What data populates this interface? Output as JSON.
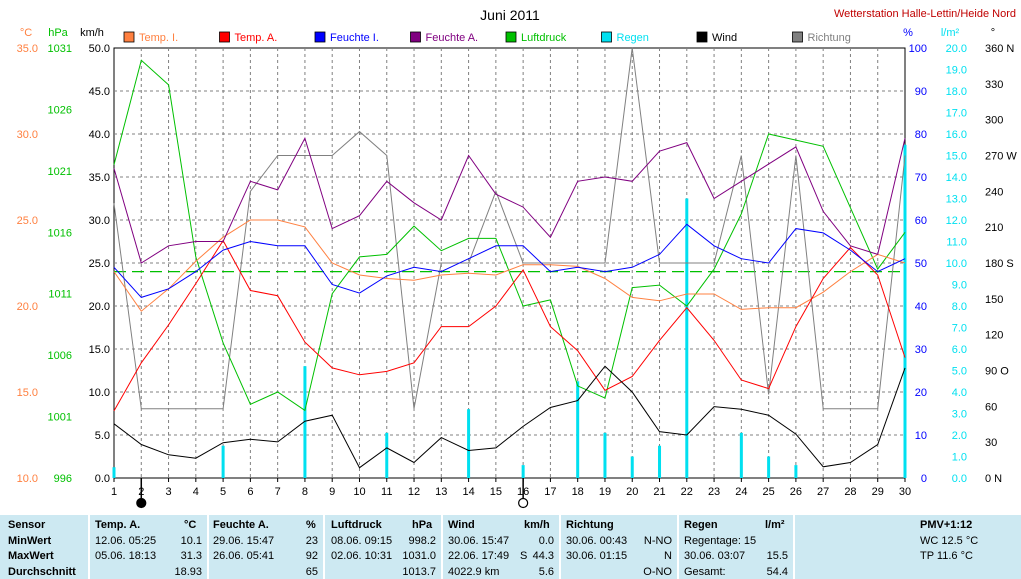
{
  "header": {
    "title": "Juni 2011",
    "station": "Wetterstation Halle-Lettin/Heide Nord"
  },
  "chart_data": {
    "type": "line",
    "title": "Juni 2011",
    "x": [
      1,
      2,
      3,
      4,
      5,
      6,
      7,
      8,
      9,
      10,
      11,
      12,
      13,
      14,
      15,
      16,
      17,
      18,
      19,
      20,
      21,
      22,
      23,
      24,
      25,
      26,
      27,
      28,
      29,
      30
    ],
    "axes": {
      "temp": {
        "unit": "°C",
        "range": [
          10,
          35
        ],
        "color": "#ff8040"
      },
      "pressure": {
        "unit": "hPa",
        "range": [
          996,
          1031
        ],
        "color": "#00c000"
      },
      "wind": {
        "unit": "km/h",
        "range": [
          0,
          50
        ]
      },
      "humidity": {
        "unit": "%",
        "range": [
          0,
          100
        ],
        "color": "#0000ff"
      },
      "rain": {
        "unit": "l/m²",
        "range": [
          0,
          20
        ],
        "color": "#00e0f0"
      },
      "direction": {
        "unit": "°",
        "range": [
          0,
          360
        ]
      }
    },
    "left_axis_labels": {
      "temp": "°C",
      "pressure": "hPa",
      "wind": "km/h"
    },
    "right_axis_labels": {
      "humidity": "%",
      "rain": "l/m²",
      "direction": "°"
    },
    "direction_labels": [
      "0 N",
      "30",
      "60",
      "90 O",
      "120",
      "150",
      "180 S",
      "210",
      "240",
      "270 W",
      "300",
      "330",
      "360 N"
    ],
    "series": [
      {
        "name": "Temp. I.",
        "color": "#ff8040",
        "axis": "temp",
        "values": [
          22.0,
          19.7,
          21.0,
          22.6,
          24.0,
          25.0,
          25.0,
          24.6,
          22.5,
          21.8,
          21.6,
          21.5,
          21.8,
          21.9,
          21.8,
          22.4,
          22.4,
          22.3,
          21.6,
          20.5,
          20.3,
          20.7,
          20.7,
          19.8,
          19.9,
          19.9,
          20.8,
          22.0,
          23.0,
          22.5
        ]
      },
      {
        "name": "Temp. A.",
        "color": "#ff0000",
        "axis": "temp",
        "values": [
          13.9,
          16.7,
          18.9,
          21.3,
          23.8,
          20.9,
          20.6,
          17.9,
          16.4,
          16.0,
          16.2,
          16.7,
          18.8,
          18.8,
          20.0,
          22.1,
          18.8,
          17.4,
          15.1,
          15.9,
          18.0,
          19.9,
          18.0,
          15.7,
          15.2,
          18.8,
          21.6,
          23.4,
          21.8,
          17.0
        ]
      },
      {
        "name": "Feuchte I.",
        "color": "#0000ff",
        "axis": "humidity",
        "values": [
          49,
          42,
          44,
          48,
          53,
          55,
          54,
          54,
          45,
          43,
          47,
          49,
          48,
          51,
          54,
          54,
          48,
          49,
          48,
          49,
          52,
          59,
          54,
          51,
          50,
          58,
          57,
          53,
          48,
          51
        ]
      },
      {
        "name": "Feuchte A.",
        "color": "#800080",
        "axis": "humidity",
        "values": [
          72,
          50,
          54,
          55,
          55,
          69,
          67,
          79,
          58,
          61,
          69,
          64,
          60,
          75,
          66,
          63,
          56,
          69,
          70,
          69,
          76,
          78,
          65,
          69,
          73,
          77,
          62,
          54,
          52,
          79
        ]
      },
      {
        "name": "Luftdruck",
        "color": "#00c000",
        "axis": "pressure",
        "values": [
          1021.5,
          1030.0,
          1028.0,
          1014.0,
          1007.0,
          1002.0,
          1003.0,
          1001.5,
          1011.0,
          1014.0,
          1014.2,
          1016.5,
          1014.5,
          1015.5,
          1015.5,
          1010.0,
          1010.5,
          1003.5,
          1002.5,
          1011.5,
          1011.7,
          1010.0,
          1013.0,
          1017.5,
          1024.0,
          1023.5,
          1023.0,
          1018.0,
          1013.0,
          1016.0
        ]
      },
      {
        "name": "Wind",
        "color": "#000000",
        "axis": "wind",
        "values": [
          6.3,
          3.9,
          2.7,
          2.3,
          4.1,
          4.5,
          4.2,
          6.6,
          7.3,
          1.2,
          3.5,
          1.8,
          4.7,
          3.2,
          3.5,
          6.0,
          8.2,
          9.0,
          13.0,
          10.0,
          5.4,
          5.0,
          8.3,
          8.0,
          7.3,
          5.1,
          1.3,
          1.8,
          3.9,
          12.8
        ]
      },
      {
        "name": "Richtung",
        "color": "#808080",
        "axis": "direction",
        "values": [
          230,
          58,
          58,
          58,
          58,
          240,
          270,
          270,
          270,
          290,
          270,
          58,
          180,
          180,
          240,
          180,
          180,
          180,
          180,
          360,
          180,
          180,
          180,
          270,
          70,
          270,
          58,
          58,
          58,
          270
        ]
      },
      {
        "name": "Regen",
        "color": "#00e0f0",
        "axis": "rain",
        "type": "bar",
        "values": [
          0.5,
          0,
          0,
          0,
          1.5,
          0,
          0,
          5.2,
          0,
          0,
          2.1,
          0,
          0,
          3.2,
          0,
          0.6,
          0,
          4.5,
          2.1,
          1.0,
          1.5,
          13.0,
          0,
          2.1,
          1.0,
          0.6,
          0,
          0,
          0,
          15.5
        ]
      }
    ],
    "reference_line": {
      "axis": "temp",
      "value": 22.0,
      "color": "#00c000",
      "style": "dashed"
    },
    "moon_markers": [
      {
        "day": 2,
        "phase": "new"
      },
      {
        "day": 16,
        "phase": "full"
      }
    ]
  },
  "stats": {
    "row_labels": [
      "Sensor",
      "MinWert",
      "MaxWert",
      "Durchschnitt"
    ],
    "temp": {
      "head": "Temp. A.",
      "unit": "°C",
      "min_time": "12.06.  05:25",
      "min_val": "10.1",
      "max_time": "05.06.  18:13",
      "max_val": "31.3",
      "avg": "18.93"
    },
    "humidity": {
      "head": "Feuchte A.",
      "unit": "%",
      "min_time": "29.06.  15:47",
      "min_val": "23",
      "max_time": "26.06.  05:41",
      "max_val": "92",
      "avg": "65"
    },
    "pressure": {
      "head": "Luftdruck",
      "unit": "hPa",
      "min_time": "08.06.  09:15",
      "min_val": "998.2",
      "max_time": "02.06.  10:31",
      "max_val": "1031.0",
      "avg": "1013.7"
    },
    "wind": {
      "head": "Wind",
      "unit": "km/h",
      "min_time": "30.06.  15:47",
      "min_val": "0.0",
      "max_time": "22.06.  17:49",
      "max_dir": "S",
      "max_val": "44.3",
      "total": "4022.9 km",
      "avg": "5.6"
    },
    "direction": {
      "head": "Richtung",
      "min_time": "30.06.  00:43",
      "min_val": "N-NO",
      "max_time": "30.06.  01:15",
      "max_val": "N",
      "avg": "O-NO"
    },
    "rain": {
      "head": "Regen",
      "unit": "l/m²",
      "days_label": "Regentage: 15",
      "max_time": "30.06.  03:07",
      "max_val": "15.5",
      "total_label": "Gesamt:",
      "total": "54.4"
    },
    "pmv": {
      "title": "PMV+1:12",
      "wc": "WC 12.5 °C",
      "tp": "TP 11.6 °C"
    }
  }
}
